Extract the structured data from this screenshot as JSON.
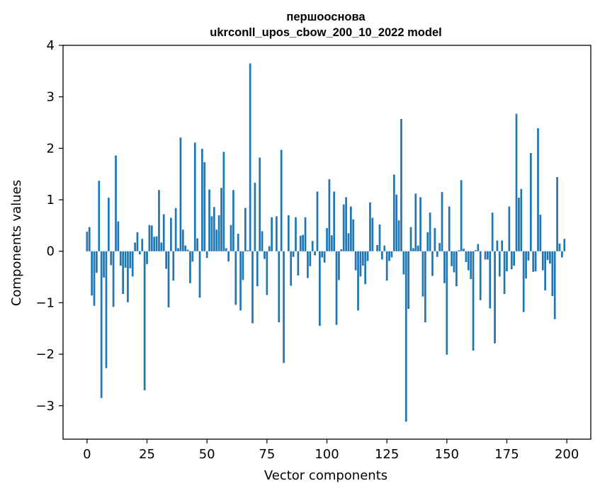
{
  "chart_data": {
    "type": "bar",
    "title": [
      "першооснова",
      "ukrconll_upos_cbow_200_10_2022 model"
    ],
    "xlabel": "Vector components",
    "ylabel": "Components values",
    "xlim": [
      -10,
      210
    ],
    "ylim": [
      -3.65,
      4
    ],
    "xticks": [
      0,
      25,
      50,
      75,
      100,
      125,
      150,
      175,
      200
    ],
    "xtick_labels": [
      "0",
      "25",
      "50",
      "75",
      "100",
      "125",
      "150",
      "175",
      "200"
    ],
    "yticks": [
      -3,
      -2,
      -1,
      0,
      1,
      2,
      3,
      4
    ],
    "ytick_labels": [
      "−3",
      "−2",
      "−1",
      "0",
      "1",
      "2",
      "3",
      "4"
    ],
    "bar_color": "#1f77b4",
    "grid": false,
    "x": [
      0,
      1,
      2,
      3,
      4,
      5,
      6,
      7,
      8,
      9,
      10,
      11,
      12,
      13,
      14,
      15,
      16,
      17,
      18,
      19,
      20,
      21,
      22,
      23,
      24,
      25,
      26,
      27,
      28,
      29,
      30,
      31,
      32,
      33,
      34,
      35,
      36,
      37,
      38,
      39,
      40,
      41,
      42,
      43,
      44,
      45,
      46,
      47,
      48,
      49,
      50,
      51,
      52,
      53,
      54,
      55,
      56,
      57,
      58,
      59,
      60,
      61,
      62,
      63,
      64,
      65,
      66,
      67,
      68,
      69,
      70,
      71,
      72,
      73,
      74,
      75,
      76,
      77,
      78,
      79,
      80,
      81,
      82,
      83,
      84,
      85,
      86,
      87,
      88,
      89,
      90,
      91,
      92,
      93,
      94,
      95,
      96,
      97,
      98,
      99,
      100,
      101,
      102,
      103,
      104,
      105,
      106,
      107,
      108,
      109,
      110,
      111,
      112,
      113,
      114,
      115,
      116,
      117,
      118,
      119,
      120,
      121,
      122,
      123,
      124,
      125,
      126,
      127,
      128,
      129,
      130,
      131,
      132,
      133,
      134,
      135,
      136,
      137,
      138,
      139,
      140,
      141,
      142,
      143,
      144,
      145,
      146,
      147,
      148,
      149,
      150,
      151,
      152,
      153,
      154,
      155,
      156,
      157,
      158,
      159,
      160,
      161,
      162,
      163,
      164,
      165,
      166,
      167,
      168,
      169,
      170,
      171,
      172,
      173,
      174,
      175,
      176,
      177,
      178,
      179,
      180,
      181,
      182,
      183,
      184,
      185,
      186,
      187,
      188,
      189,
      190,
      191,
      192,
      193,
      194,
      195,
      196,
      197,
      198,
      199
    ],
    "values": [
      0.38,
      0.47,
      -0.86,
      -1.06,
      -0.42,
      1.37,
      -2.85,
      -0.51,
      -2.27,
      1.04,
      -0.27,
      -1.08,
      1.86,
      0.58,
      -0.28,
      -0.83,
      -0.32,
      -0.99,
      -0.33,
      -0.49,
      0.17,
      0.37,
      -0.06,
      0.24,
      -2.7,
      -0.25,
      0.51,
      0.5,
      0.28,
      0.29,
      1.19,
      0.17,
      0.72,
      -0.34,
      -1.09,
      0.65,
      -0.57,
      0.84,
      0.06,
      2.21,
      0.42,
      0.11,
      0.03,
      -0.62,
      -0.2,
      2.11,
      0.25,
      -0.9,
      1.99,
      1.73,
      -0.13,
      1.2,
      0.68,
      0.86,
      0.42,
      0.7,
      1.23,
      1.93,
      0.06,
      -0.2,
      0.51,
      1.19,
      -1.04,
      0.34,
      -1.15,
      -0.56,
      0.84,
      0.02,
      3.65,
      -1.4,
      1.33,
      -0.68,
      1.82,
      0.39,
      -0.15,
      -0.85,
      0.1,
      0.66,
      0.0,
      0.68,
      -1.38,
      1.97,
      -2.17,
      0.0,
      0.7,
      -0.67,
      -0.11,
      0.66,
      -0.47,
      0.3,
      0.32,
      0.66,
      -0.52,
      -0.29,
      0.2,
      -0.08,
      1.16,
      -1.45,
      -0.12,
      -0.22,
      0.45,
      1.4,
      0.31,
      1.16,
      -1.43,
      -0.56,
      0.04,
      0.91,
      1.05,
      0.35,
      0.87,
      0.62,
      -0.37,
      -1.15,
      -0.49,
      -0.28,
      -0.64,
      -0.19,
      0.95,
      0.65,
      0.0,
      0.12,
      0.52,
      -0.16,
      0.11,
      -0.57,
      -0.19,
      -0.12,
      1.49,
      1.1,
      0.6,
      2.57,
      -0.45,
      -3.31,
      -1.12,
      0.47,
      0.06,
      1.12,
      0.11,
      1.05,
      -0.88,
      -1.38,
      0.37,
      0.75,
      -0.48,
      0.45,
      -0.11,
      0.16,
      1.15,
      -0.62,
      -2.01,
      0.87,
      -0.29,
      -0.41,
      -0.68,
      0.02,
      1.38,
      0.05,
      -0.21,
      -0.37,
      -0.54,
      -1.93,
      0.02,
      0.14,
      -0.95,
      0.0,
      -0.16,
      -0.16,
      -1.11,
      0.75,
      -1.79,
      0.21,
      -0.49,
      0.21,
      -0.83,
      -0.39,
      0.87,
      -0.35,
      -0.28,
      2.67,
      1.04,
      1.21,
      -1.18,
      -0.53,
      -0.18,
      1.91,
      -0.4,
      -0.39,
      2.39,
      0.71,
      -0.37,
      -0.76,
      -0.17,
      -0.24,
      -0.87,
      -1.32,
      1.44,
      0.15,
      -0.12,
      0.24
    ]
  }
}
